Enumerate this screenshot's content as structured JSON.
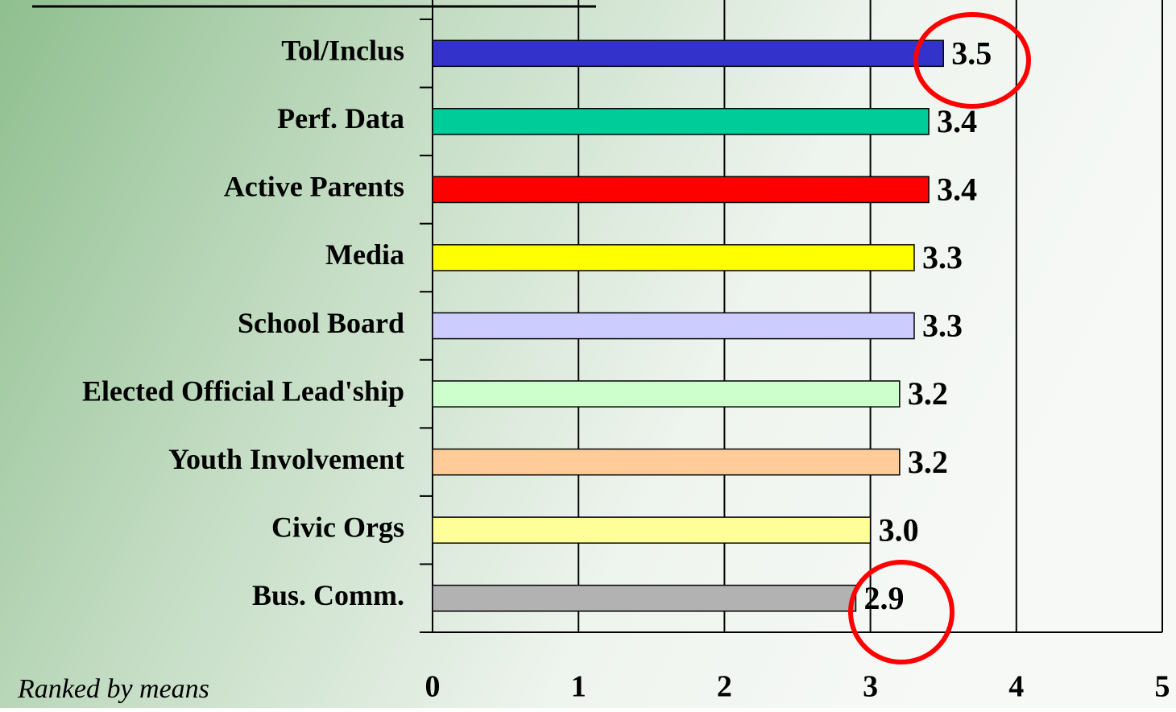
{
  "chart_data": {
    "type": "barh",
    "categories": [
      "Tol/Inclus",
      "Perf. Data",
      "Active Parents",
      "Media",
      "School Board",
      "Elected Official Lead'ship",
      "Youth Involvement",
      "Civic Orgs",
      "Bus. Comm."
    ],
    "values": [
      3.5,
      3.4,
      3.4,
      3.3,
      3.3,
      3.2,
      3.2,
      3.0,
      2.9
    ],
    "value_labels": [
      "3.5",
      "3.4",
      "3.4",
      "3.3",
      "3.3",
      "3.2",
      "3.2",
      "3.0",
      "2.9"
    ],
    "colors": [
      "#3333cc",
      "#00cc99",
      "#ff0000",
      "#ffff00",
      "#ccccff",
      "#ccffcc",
      "#ffcc99",
      "#ffff99",
      "#b2b2b2"
    ],
    "xlim": [
      0,
      5
    ],
    "xticks": [
      0,
      1,
      2,
      3,
      4,
      5
    ],
    "grid": true,
    "annotation": "Ranked by means"
  }
}
